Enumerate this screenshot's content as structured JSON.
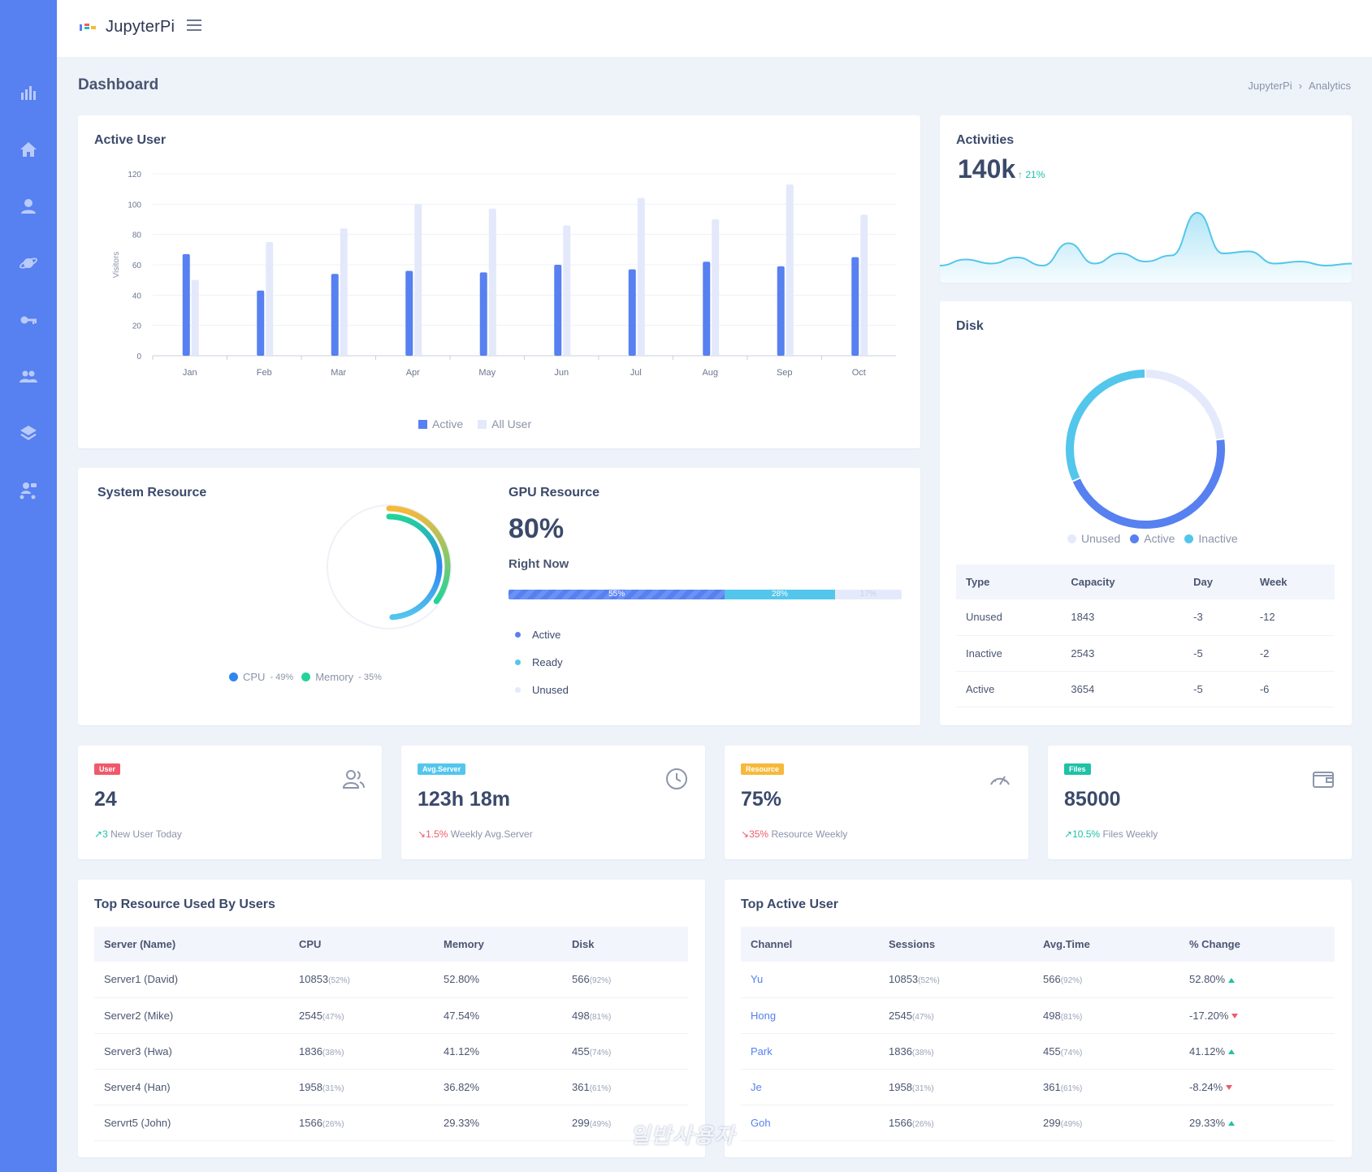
{
  "app": {
    "title": "JupyterPi"
  },
  "page": {
    "title": "Dashboard"
  },
  "breadcrumb": [
    "JupyterPi",
    "Analytics"
  ],
  "sidebar": {
    "icons": [
      "bar-chart-icon",
      "home-icon",
      "user-icon",
      "planet-icon",
      "key-icon",
      "group-icon",
      "layers-icon",
      "org-chart-icon"
    ]
  },
  "active_user": {
    "title": "Active User",
    "legend": [
      "Active",
      "All User"
    ],
    "colors": {
      "active": "#5780f0",
      "all": "#e3e9fb"
    }
  },
  "chart_data": [
    {
      "type": "bar",
      "title": "Active User",
      "ylabel": "Visitors",
      "xlabel": "",
      "categories": [
        "Jan",
        "Feb",
        "Mar",
        "Apr",
        "May",
        "Jun",
        "Jul",
        "Aug",
        "Sep",
        "Oct"
      ],
      "series": [
        {
          "name": "Active",
          "values": [
            67,
            43,
            54,
            56,
            55,
            60,
            57,
            62,
            59,
            65
          ]
        },
        {
          "name": "All User",
          "values": [
            50,
            75,
            84,
            100,
            97,
            86,
            104,
            90,
            113,
            93
          ]
        }
      ],
      "ylim": [
        0,
        120
      ],
      "yticks": [
        0,
        20,
        40,
        60,
        80,
        100,
        120
      ],
      "grid": true,
      "legend": "bottom"
    },
    {
      "type": "area",
      "title": "Activities",
      "values": [
        12,
        18,
        14,
        20,
        12,
        34,
        14,
        24,
        16,
        22,
        64,
        24,
        26,
        14,
        16,
        12,
        14
      ],
      "color": "#53c6ec"
    },
    {
      "type": "pie",
      "title": "Disk",
      "categories": [
        "Unused",
        "Active",
        "Inactive"
      ],
      "values": [
        1843,
        3654,
        2543
      ],
      "colors": [
        "#e4eafb",
        "#5780f0",
        "#53c6ec"
      ],
      "legend": "bottom"
    },
    {
      "type": "pie",
      "title": "System Resource",
      "categories": [
        "CPU",
        "Memory"
      ],
      "values": [
        49,
        35
      ],
      "colors": [
        "#2f86f0",
        "#22d39a"
      ],
      "legend": "bottom"
    }
  ],
  "activities": {
    "title": "Activities",
    "value": "140k",
    "change": "21%"
  },
  "disk": {
    "title": "Disk",
    "legend": [
      "Unused",
      "Active",
      "Inactive"
    ],
    "table": {
      "headers": [
        "Type",
        "Capacity",
        "Day",
        "Week"
      ],
      "rows": [
        [
          "Unused",
          "1843",
          "-3",
          "-12"
        ],
        [
          "Inactive",
          "2543",
          "-5",
          "-2"
        ],
        [
          "Active",
          "3654",
          "-5",
          "-6"
        ]
      ]
    }
  },
  "system_resource": {
    "title": "System Resource",
    "cpu_label": "CPU",
    "cpu_value": "- 49%",
    "memory_label": "Memory",
    "memory_value": "- 35%"
  },
  "gpu": {
    "title": "GPU Resource",
    "value": "80%",
    "subtitle": "Right Now",
    "segments": [
      {
        "label": "55%",
        "fraction": 0.55
      },
      {
        "label": "28%",
        "fraction": 0.28
      },
      {
        "label": "17%",
        "fraction": 0.17
      }
    ],
    "legend": [
      {
        "label": "Active",
        "color": "#5780f0"
      },
      {
        "label": "Ready",
        "color": "#53c6ec"
      },
      {
        "label": "Unused",
        "color": "#e4eafb"
      }
    ]
  },
  "stats": [
    {
      "badge": "User",
      "badge_color": "#f0596b",
      "value": "24",
      "trend": "3",
      "trend_dir": "up",
      "foot": "New User Today",
      "icon": "users-icon"
    },
    {
      "badge": "Avg.Server",
      "badge_color": "#53c6ec",
      "value": "123h 18m",
      "trend": "1.5%",
      "trend_dir": "down",
      "foot": "Weekly Avg.Server",
      "icon": "clock-icon"
    },
    {
      "badge": "Resource",
      "badge_color": "#f6b93b",
      "value": "75%",
      "trend": "35%",
      "trend_dir": "down",
      "foot": "Resource Weekly",
      "icon": "gauge-icon"
    },
    {
      "badge": "Files",
      "badge_color": "#1fc1a8",
      "value": "85000",
      "trend": "10.5%",
      "trend_dir": "up",
      "foot": "Files Weekly",
      "icon": "wallet-icon"
    }
  ],
  "top_resource": {
    "title": "Top Resource Used By Users",
    "headers": [
      "Server (Name)",
      "CPU",
      "Memory",
      "Disk"
    ],
    "rows": [
      {
        "name": "Server1 (David)",
        "cpu": "10853",
        "cpu_pct": "(52%)",
        "memory": "52.80%",
        "disk": "566",
        "disk_pct": "(92%)"
      },
      {
        "name": "Server2 (Mike)",
        "cpu": "2545",
        "cpu_pct": "(47%)",
        "memory": "47.54%",
        "disk": "498",
        "disk_pct": "(81%)"
      },
      {
        "name": "Server3 (Hwa)",
        "cpu": "1836",
        "cpu_pct": "(38%)",
        "memory": "41.12%",
        "disk": "455",
        "disk_pct": "(74%)"
      },
      {
        "name": "Server4 (Han)",
        "cpu": "1958",
        "cpu_pct": "(31%)",
        "memory": "36.82%",
        "disk": "361",
        "disk_pct": "(61%)"
      },
      {
        "name": "Servrt5 (John)",
        "cpu": "1566",
        "cpu_pct": "(26%)",
        "memory": "29.33%",
        "disk": "299",
        "disk_pct": "(49%)"
      }
    ]
  },
  "top_active": {
    "title": "Top Active User",
    "headers": [
      "Channel",
      "Sessions",
      "Avg.Time",
      "% Change"
    ],
    "rows": [
      {
        "name": "Yu",
        "sessions": "10853",
        "sessions_pct": "(52%)",
        "time": "566",
        "time_pct": "(92%)",
        "change": "52.80%",
        "dir": "up"
      },
      {
        "name": "Hong",
        "sessions": "2545",
        "sessions_pct": "(47%)",
        "time": "498",
        "time_pct": "(81%)",
        "change": "-17.20%",
        "dir": "down"
      },
      {
        "name": "Park",
        "sessions": "1836",
        "sessions_pct": "(38%)",
        "time": "455",
        "time_pct": "(74%)",
        "change": "41.12%",
        "dir": "up"
      },
      {
        "name": "Je",
        "sessions": "1958",
        "sessions_pct": "(31%)",
        "time": "361",
        "time_pct": "(61%)",
        "change": "-8.24%",
        "dir": "down"
      },
      {
        "name": "Goh",
        "sessions": "1566",
        "sessions_pct": "(26%)",
        "time": "299",
        "time_pct": "(49%)",
        "change": "29.33%",
        "dir": "up"
      }
    ]
  },
  "watermark": "일반사용자"
}
